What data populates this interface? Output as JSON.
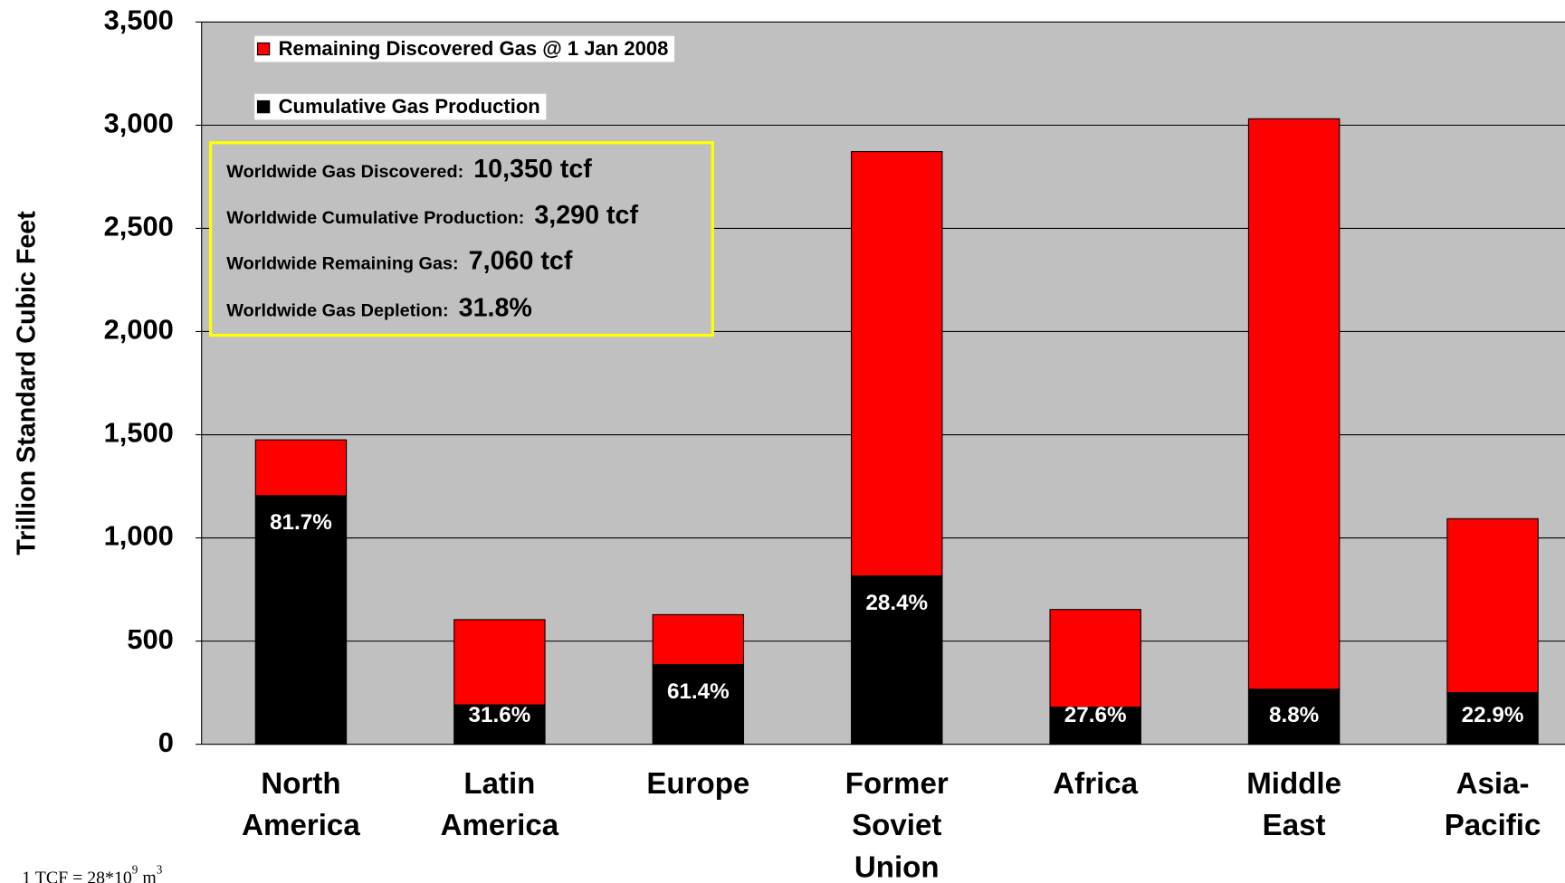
{
  "chart_data": {
    "type": "stacked_bar",
    "y_label": "Trillion Standard Cubic Feet",
    "categories": [
      "North America",
      "Latin America",
      "Europe",
      "Former Soviet Union",
      "Africa",
      "Middle East",
      "Asia-Pacific"
    ],
    "series": [
      {
        "name": "Cumulative Gas Production",
        "color": "#000000",
        "values": [
          1205,
          191,
          386,
          816,
          180,
          267,
          250
        ]
      },
      {
        "name": "Remaining Discovered Gas @ 1 Jan 2008",
        "color": "#ff0000",
        "values": [
          270,
          413,
          242,
          2056,
          473,
          2764,
          843
        ]
      }
    ],
    "depletion_labels": [
      "81.7%",
      "31.6%",
      "61.4%",
      "28.4%",
      "27.6%",
      "8.8%",
      "22.9%"
    ],
    "ylim": [
      0,
      3500
    ],
    "yticks": [
      0,
      {
        "value": 500,
        "label": "500"
      },
      {
        "value": 1000,
        "label": "1,000"
      },
      {
        "value": 1500,
        "label": "1,500"
      },
      {
        "value": 2000,
        "label": "2,000"
      },
      {
        "value": 2500,
        "label": "2,500"
      },
      {
        "value": 3000,
        "label": "3,000"
      },
      {
        "value": 3500,
        "label": "3,500"
      }
    ],
    "grid": true,
    "annotations": [
      {
        "label": "Worldwide Gas Discovered:",
        "value": "10,350 tcf"
      },
      {
        "label": "Worldwide Cumulative Production:",
        "value": "3,290 tcf"
      },
      {
        "label": "Worldwide Remaining Gas:",
        "value": "7,060 tcf"
      },
      {
        "label": "Worldwide Gas Depletion:",
        "value": "31.8%"
      }
    ],
    "footnote": {
      "text": "1 TCF = 28*10",
      "exponent": "9",
      "unit": " m",
      "unit_exponent": "3"
    }
  }
}
